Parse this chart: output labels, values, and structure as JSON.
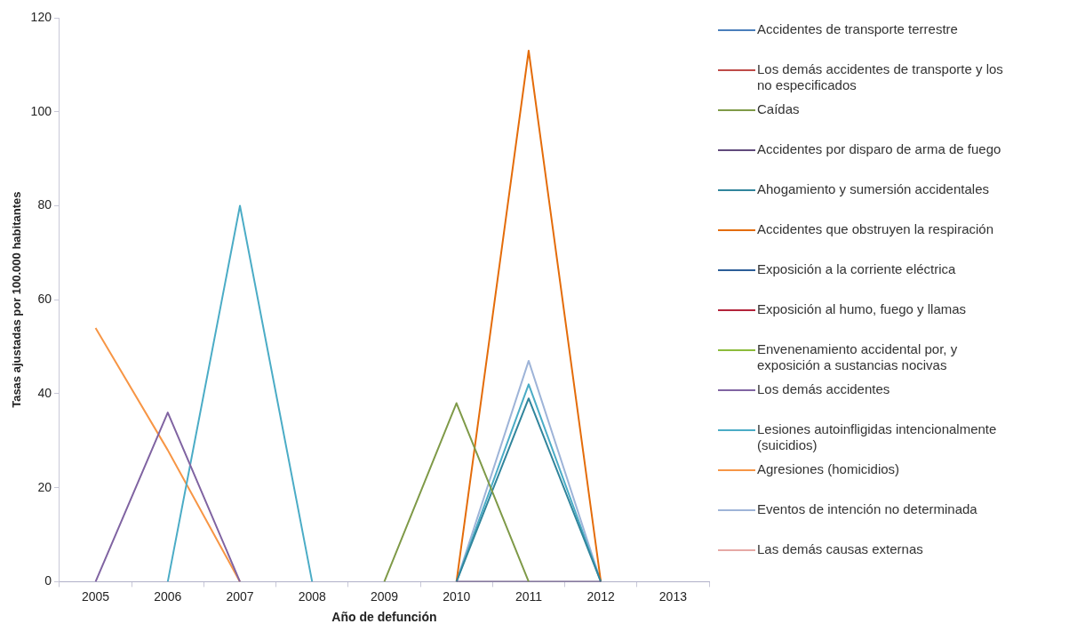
{
  "chart_data": {
    "type": "line",
    "xlabel": "Año de defunción",
    "ylabel": "Tasas ajustadas por 100.000 habitantes",
    "categories": [
      "2005",
      "2006",
      "2007",
      "2008",
      "2009",
      "2010",
      "2011",
      "2012",
      "2013"
    ],
    "ylim": [
      0,
      120
    ],
    "yticks": [
      0,
      20,
      40,
      60,
      80,
      100,
      120
    ],
    "grid": false,
    "legend": "right",
    "marker": "none",
    "line_style": "solid",
    "series": [
      {
        "name": "Accidentes de transporte terrestre",
        "color": "#4a7ebb",
        "values": [
          null,
          null,
          null,
          null,
          null,
          null,
          null,
          null,
          null
        ]
      },
      {
        "name": "Los demás accidentes de transporte y los no especificados",
        "color": "#be4b48",
        "values": [
          null,
          null,
          null,
          null,
          null,
          null,
          null,
          null,
          null
        ]
      },
      {
        "name": "Caídas",
        "color": "#7f9a48",
        "values": [
          null,
          null,
          null,
          null,
          0,
          38,
          0,
          null,
          null
        ]
      },
      {
        "name": "Accidentes por disparo de arma de fuego",
        "color": "#604a7b",
        "values": [
          null,
          null,
          null,
          null,
          null,
          0,
          0,
          0,
          null
        ]
      },
      {
        "name": "Ahogamiento y sumersión accidentales",
        "color": "#31859c",
        "values": [
          null,
          null,
          null,
          null,
          null,
          0,
          39,
          0,
          null
        ]
      },
      {
        "name": "Accidentes que obstruyen la respiración",
        "color": "#e46c0a",
        "values": [
          null,
          null,
          null,
          null,
          null,
          0,
          113,
          0,
          null
        ]
      },
      {
        "name": "Exposición a la corriente eléctrica",
        "color": "#2c5d98",
        "values": [
          null,
          null,
          null,
          null,
          null,
          null,
          null,
          null,
          null
        ]
      },
      {
        "name": "Exposición al humo, fuego y llamas",
        "color": "#b3233b",
        "values": [
          null,
          null,
          null,
          null,
          null,
          null,
          null,
          null,
          null
        ]
      },
      {
        "name": "Envenenamiento accidental por, y exposición a sustancias nocivas",
        "color": "#8cbb3c",
        "values": [
          null,
          null,
          null,
          null,
          null,
          null,
          null,
          null,
          null
        ]
      },
      {
        "name": "Los demás accidentes",
        "color": "#8064a2",
        "values": [
          0,
          36,
          0,
          null,
          null,
          null,
          null,
          null,
          null
        ]
      },
      {
        "name": "Lesiones autoinfligidas intencionalmente (suicidios)",
        "color": "#4bacc6",
        "values": [
          null,
          0,
          80,
          0,
          null,
          0,
          42,
          0,
          null
        ]
      },
      {
        "name": "Agresiones (homicidios)",
        "color": "#f79646",
        "values": [
          54,
          28,
          0,
          null,
          null,
          null,
          null,
          null,
          null
        ]
      },
      {
        "name": "Eventos de intención no determinada",
        "color": "#9eb4d8",
        "values": [
          null,
          null,
          null,
          null,
          null,
          0,
          47,
          0,
          null
        ]
      },
      {
        "name": "Las demás causas externas",
        "color": "#e6a9a5",
        "values": [
          null,
          null,
          null,
          null,
          null,
          null,
          null,
          null,
          null
        ]
      }
    ]
  }
}
